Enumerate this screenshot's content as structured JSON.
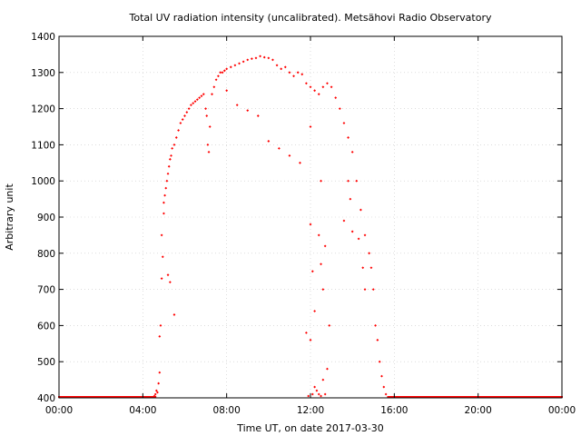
{
  "chart_data": {
    "type": "scatter",
    "title": "Total UV radiation intensity (uncalibrated). Metsähovi Radio Observatory",
    "xlabel": "Time UT, on date 2017-03-30",
    "ylabel": "Arbitrary unit",
    "x_unit": "hours UT",
    "xlim": [
      0,
      24
    ],
    "ylim": [
      400,
      1400
    ],
    "xticks": [
      0,
      4,
      8,
      12,
      16,
      20,
      24
    ],
    "xtick_labels": [
      "00:00",
      "04:00",
      "08:00",
      "12:00",
      "16:00",
      "20:00",
      "00:00"
    ],
    "yticks": [
      400,
      500,
      600,
      700,
      800,
      900,
      1000,
      1100,
      1200,
      1300,
      1400
    ],
    "ytick_labels": [
      "400",
      "500",
      "600",
      "700",
      "800",
      "900",
      "1000",
      "1100",
      "1200",
      "1300",
      "1400"
    ],
    "grid": true,
    "legend": "none",
    "marker_color": "#ff0000",
    "baseline": {
      "value": 400,
      "x_ranges": [
        [
          0,
          4.6
        ],
        [
          15.7,
          24
        ]
      ]
    },
    "series": [
      {
        "values": [
          [
            4.55,
            405
          ],
          [
            4.6,
            410
          ],
          [
            4.65,
            420
          ],
          [
            4.7,
            415
          ],
          [
            4.75,
            440
          ],
          [
            4.8,
            470
          ],
          [
            4.8,
            570
          ],
          [
            4.85,
            600
          ],
          [
            4.9,
            730
          ],
          [
            4.95,
            790
          ],
          [
            4.9,
            850
          ],
          [
            5.0,
            910
          ],
          [
            5.0,
            940
          ],
          [
            5.05,
            960
          ],
          [
            5.1,
            980
          ],
          [
            5.15,
            1000
          ],
          [
            5.2,
            1020
          ],
          [
            5.25,
            1040
          ],
          [
            5.3,
            1060
          ],
          [
            5.35,
            1070
          ],
          [
            5.4,
            1090
          ],
          [
            5.5,
            1100
          ],
          [
            5.6,
            1120
          ],
          [
            5.7,
            1140
          ],
          [
            5.8,
            1160
          ],
          [
            5.9,
            1170
          ],
          [
            6.0,
            1180
          ],
          [
            6.1,
            1190
          ],
          [
            6.2,
            1200
          ],
          [
            6.3,
            1210
          ],
          [
            6.4,
            1215
          ],
          [
            6.5,
            1220
          ],
          [
            6.6,
            1225
          ],
          [
            6.7,
            1230
          ],
          [
            6.8,
            1235
          ],
          [
            6.9,
            1240
          ],
          [
            7.0,
            1200
          ],
          [
            7.05,
            1180
          ],
          [
            7.1,
            1100
          ],
          [
            7.15,
            1080
          ],
          [
            7.2,
            1150
          ],
          [
            7.3,
            1240
          ],
          [
            7.4,
            1260
          ],
          [
            7.5,
            1280
          ],
          [
            7.6,
            1290
          ],
          [
            7.7,
            1300
          ],
          [
            7.8,
            1300
          ],
          [
            7.9,
            1305
          ],
          [
            8.0,
            1310
          ],
          [
            8.2,
            1315
          ],
          [
            8.4,
            1320
          ],
          [
            8.6,
            1325
          ],
          [
            8.8,
            1330
          ],
          [
            9.0,
            1335
          ],
          [
            9.2,
            1338
          ],
          [
            9.4,
            1340
          ],
          [
            9.6,
            1345
          ],
          [
            9.8,
            1342
          ],
          [
            10.0,
            1340
          ],
          [
            10.2,
            1335
          ],
          [
            10.4,
            1320
          ],
          [
            10.6,
            1310
          ],
          [
            10.8,
            1315
          ],
          [
            11.0,
            1300
          ],
          [
            11.2,
            1290
          ],
          [
            11.4,
            1300
          ],
          [
            11.6,
            1295
          ],
          [
            11.8,
            1270
          ],
          [
            12.0,
            1260
          ],
          [
            12.2,
            1250
          ],
          [
            12.4,
            1240
          ],
          [
            12.6,
            1260
          ],
          [
            12.8,
            1270
          ],
          [
            13.0,
            1260
          ],
          [
            13.2,
            1230
          ],
          [
            13.4,
            1200
          ],
          [
            13.6,
            1160
          ],
          [
            13.8,
            1120
          ],
          [
            14.0,
            1080
          ],
          [
            14.2,
            1000
          ],
          [
            14.4,
            920
          ],
          [
            14.6,
            850
          ],
          [
            14.8,
            800
          ],
          [
            14.9,
            760
          ],
          [
            15.0,
            700
          ],
          [
            15.1,
            600
          ],
          [
            15.2,
            560
          ],
          [
            15.3,
            500
          ],
          [
            15.4,
            460
          ],
          [
            15.5,
            430
          ],
          [
            15.6,
            410
          ],
          [
            5.5,
            630
          ],
          [
            5.2,
            740
          ],
          [
            5.3,
            720
          ],
          [
            8.0,
            1250
          ],
          [
            8.5,
            1210
          ],
          [
            9.0,
            1195
          ],
          [
            9.5,
            1180
          ],
          [
            10.0,
            1110
          ],
          [
            10.5,
            1090
          ],
          [
            11.0,
            1070
          ],
          [
            11.5,
            1050
          ],
          [
            12.0,
            1150
          ],
          [
            12.5,
            1000
          ],
          [
            12.0,
            880
          ],
          [
            12.1,
            750
          ],
          [
            12.2,
            640
          ],
          [
            12.4,
            850
          ],
          [
            12.5,
            770
          ],
          [
            12.6,
            700
          ],
          [
            12.7,
            820
          ],
          [
            12.9,
            600
          ],
          [
            11.8,
            580
          ],
          [
            12.0,
            560
          ],
          [
            12.6,
            450
          ],
          [
            12.8,
            480
          ],
          [
            12.2,
            430
          ],
          [
            12.4,
            410
          ],
          [
            11.9,
            405
          ],
          [
            12.1,
            410
          ],
          [
            12.3,
            420
          ],
          [
            12.5,
            405
          ],
          [
            12.7,
            410
          ],
          [
            13.8,
            1000
          ],
          [
            13.9,
            950
          ],
          [
            14.0,
            860
          ],
          [
            14.3,
            840
          ],
          [
            13.6,
            890
          ],
          [
            14.6,
            700
          ],
          [
            14.5,
            760
          ]
        ]
      }
    ]
  }
}
